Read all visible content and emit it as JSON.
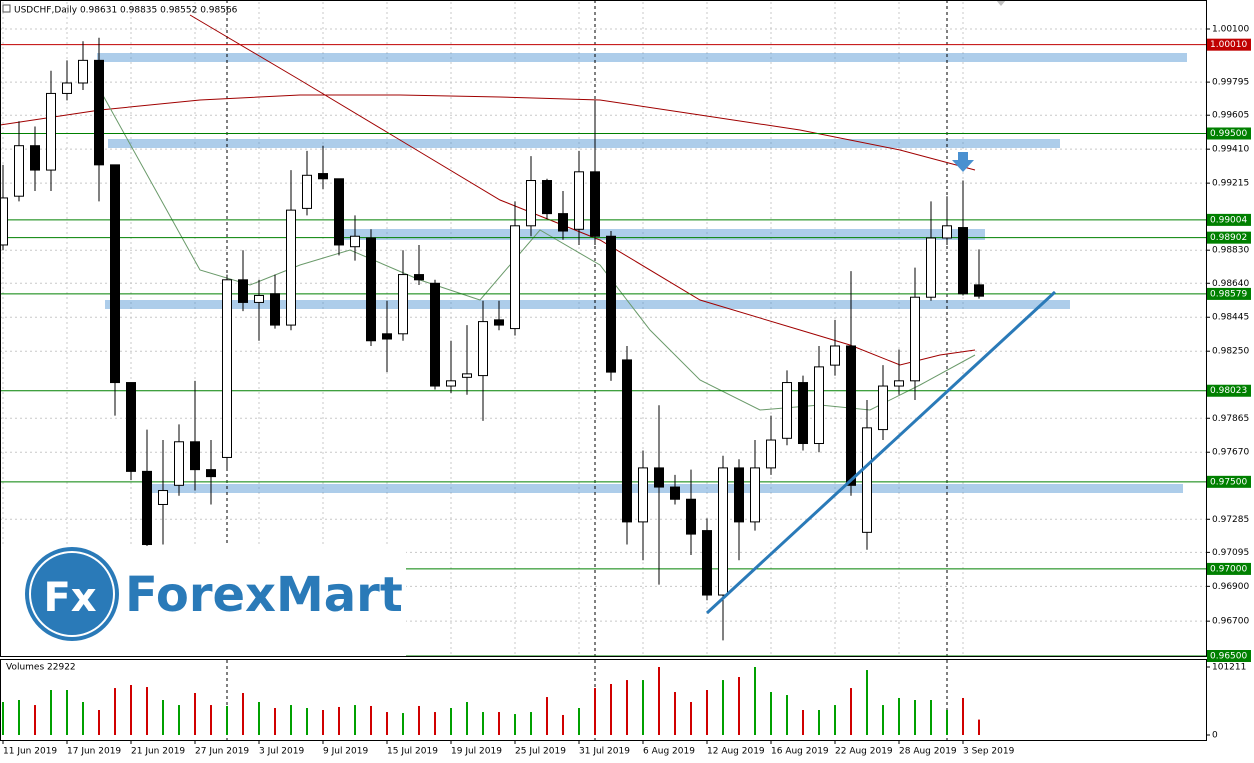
{
  "chart_data": {
    "type": "candlestick",
    "title": "USDCHF,Daily  0.98631 0.98835 0.98552 0.98566",
    "categories": [
      "11 Jun 2019",
      null,
      null,
      null,
      "17 Jun 2019",
      null,
      null,
      null,
      "21 Jun 2019",
      null,
      null,
      null,
      "27 Jun 2019",
      null,
      null,
      null,
      "3 Jul 2019",
      null,
      null,
      null,
      "9 Jul 2019",
      null,
      null,
      null,
      "15 Jul 2019",
      null,
      null,
      null,
      "19 Jul 2019",
      null,
      null,
      null,
      "25 Jul 2019",
      null,
      null,
      null,
      "31 Jul 2019",
      null,
      null,
      null,
      "6 Aug 2019",
      null,
      null,
      null,
      "12 Aug 2019",
      null,
      null,
      null,
      "16 Aug 2019",
      null,
      null,
      null,
      "22 Aug 2019",
      null,
      null,
      null,
      "28 Aug 2019",
      null,
      null,
      null,
      "3 Sep 2019",
      null
    ],
    "open": [
      0.9886,
      0.9914,
      0.9943,
      0.9929,
      0.9973,
      0.9979,
      0.9992,
      0.9932,
      0.9807,
      0.9756,
      0.9737,
      0.9748,
      0.9773,
      0.9757,
      0.9764,
      0.9866,
      0.9853,
      0.9858,
      0.984,
      0.9907,
      0.9927,
      0.9924,
      0.9885,
      0.989,
      0.9835,
      0.9835,
      0.9869,
      0.9864,
      0.9805,
      0.981,
      0.9811,
      0.9843,
      0.9838,
      0.9897,
      0.9923,
      0.9904,
      0.9895,
      0.9928,
      0.9891,
      0.982,
      0.9727,
      0.9758,
      0.9747,
      0.974,
      0.9722,
      0.9685,
      0.9758,
      0.9727,
      0.9758,
      0.9775,
      0.9807,
      0.9772,
      0.9817,
      0.9828,
      0.9721,
      0.978,
      0.9805,
      0.9808,
      0.9856,
      0.989,
      0.9896,
      0.98631
    ],
    "high": [
      0.9932,
      0.9957,
      0.9954,
      0.9986,
      0.9992,
      1.0003,
      1.0005,
      0.9932,
      0.9807,
      0.978,
      0.9774,
      0.9783,
      0.9808,
      0.9774,
      0.9869,
      0.9883,
      0.9866,
      0.9869,
      0.9929,
      0.994,
      0.9943,
      0.9924,
      0.9903,
      0.9895,
      0.9854,
      0.9883,
      0.9886,
      0.9866,
      0.9831,
      0.984,
      0.9854,
      0.9854,
      0.9911,
      0.9937,
      0.9924,
      0.9917,
      0.994,
      0.9969,
      0.9894,
      0.9828,
      0.9768,
      0.9794,
      0.9754,
      0.9757,
      0.9729,
      0.9765,
      0.9763,
      0.9774,
      0.9788,
      0.9814,
      0.9811,
      0.9828,
      0.9843,
      0.9871,
      0.9797,
      0.9817,
      0.9826,
      0.9873,
      0.9911,
      0.9914,
      0.9923,
      0.98835
    ],
    "low": [
      0.9883,
      0.9911,
      0.9917,
      0.9917,
      0.9969,
      0.9975,
      0.9911,
      0.9788,
      0.9751,
      0.9713,
      0.9714,
      0.9742,
      0.9745,
      0.9737,
      0.9757,
      0.9848,
      0.9831,
      0.9838,
      0.9837,
      0.9903,
      0.9918,
      0.988,
      0.9877,
      0.9828,
      0.9813,
      0.9831,
      0.9863,
      0.9803,
      0.9801,
      0.98,
      0.9785,
      0.9837,
      0.9834,
      0.9891,
      0.9901,
      0.9889,
      0.9886,
      0.9886,
      0.9808,
      0.9714,
      0.9705,
      0.9691,
      0.9737,
      0.9708,
      0.9682,
      0.9659,
      0.9705,
      0.9722,
      0.9754,
      0.9771,
      0.9768,
      0.9767,
      0.9811,
      0.9742,
      0.9711,
      0.9774,
      0.98,
      0.9797,
      0.9854,
      0.9886,
      0.9857,
      0.98552
    ],
    "close": [
      0.9913,
      0.9943,
      0.9929,
      0.9973,
      0.9979,
      0.9992,
      0.9932,
      0.9807,
      0.9756,
      0.9714,
      0.9745,
      0.9773,
      0.9757,
      0.9753,
      0.9866,
      0.9853,
      0.9857,
      0.984,
      0.9906,
      0.9926,
      0.9924,
      0.9886,
      0.9891,
      0.9831,
      0.9832,
      0.9869,
      0.9866,
      0.9805,
      0.9808,
      0.9812,
      0.9842,
      0.984,
      0.9897,
      0.9923,
      0.9904,
      0.9894,
      0.9928,
      0.9891,
      0.9813,
      0.9727,
      0.9758,
      0.9747,
      0.974,
      0.972,
      0.9685,
      0.9758,
      0.9727,
      0.9758,
      0.9774,
      0.9807,
      0.9772,
      0.9816,
      0.9828,
      0.9748,
      0.9781,
      0.9805,
      0.9808,
      0.9856,
      0.989,
      0.9897,
      0.9858,
      0.98566
    ],
    "up_color": "#ffffff",
    "down_color": "#000000",
    "ylim": [
      0.965,
      1.00255
    ],
    "yticks": [
      {
        "value": 1.001,
        "label": "1.00100"
      },
      0.99795,
      0.99605,
      {
        "value": 0.9941,
        "label": "0.99410"
      },
      0.99215,
      {
        "value": 0.9883,
        "label": "0.98830"
      },
      {
        "value": 0.9864,
        "label": "0.98640"
      },
      0.98445,
      {
        "value": 0.9825,
        "label": "0.98250"
      },
      0.97865,
      {
        "value": 0.9767,
        "label": "0.97670"
      },
      0.97285,
      0.97095,
      {
        "value": 0.969,
        "label": "0.96900"
      },
      {
        "value": 0.967,
        "label": "0.96700"
      }
    ],
    "grid": true,
    "levels": [
      {
        "value": 1.0001,
        "label": "1.00010",
        "color": "#c00000"
      },
      {
        "value": 0.995,
        "label": "0.99500",
        "color": "#008000"
      },
      {
        "value": 0.99004,
        "label": "0.99004",
        "color": "#008000"
      },
      {
        "value": 0.98902,
        "label": "0.98902",
        "color": "#008000"
      },
      {
        "value": 0.98579,
        "label": "0.98579",
        "color": "#008000"
      },
      {
        "value": 0.98023,
        "label": "0.98023",
        "color": "#008000"
      },
      {
        "value": 0.975,
        "label": "0.97500",
        "color": "#008000"
      },
      {
        "value": 0.97,
        "label": "0.97000",
        "color": "#008000"
      },
      {
        "value": 0.965,
        "label": "0.96500",
        "color": "#008000"
      }
    ],
    "volume": {
      "title": "Volumes 22922",
      "values": [
        49100,
        52100,
        44600,
        67000,
        67000,
        49100,
        37200,
        69900,
        74400,
        71400,
        52100,
        44600,
        62500,
        44600,
        43200,
        62500,
        49100,
        40200,
        44600,
        40200,
        37200,
        41700,
        44600,
        43200,
        34200,
        32700,
        43200,
        34200,
        40200,
        49100,
        34200,
        34200,
        31200,
        34200,
        56500,
        29800,
        40200,
        69900,
        75900,
        81800,
        81800,
        101200,
        64000,
        49100,
        67000,
        81800,
        86300,
        101200,
        64000,
        59500,
        37200,
        37200,
        44600,
        69900,
        96700,
        44600,
        55100,
        52100,
        52100,
        37200,
        55100,
        22922
      ],
      "up_color": "#00a000",
      "down_color": "#d00000",
      "ylim": [
        0,
        101211
      ],
      "yticks": [
        0,
        101211
      ]
    },
    "watermark": {
      "icon": "Fx",
      "text": "ForexMart"
    }
  }
}
